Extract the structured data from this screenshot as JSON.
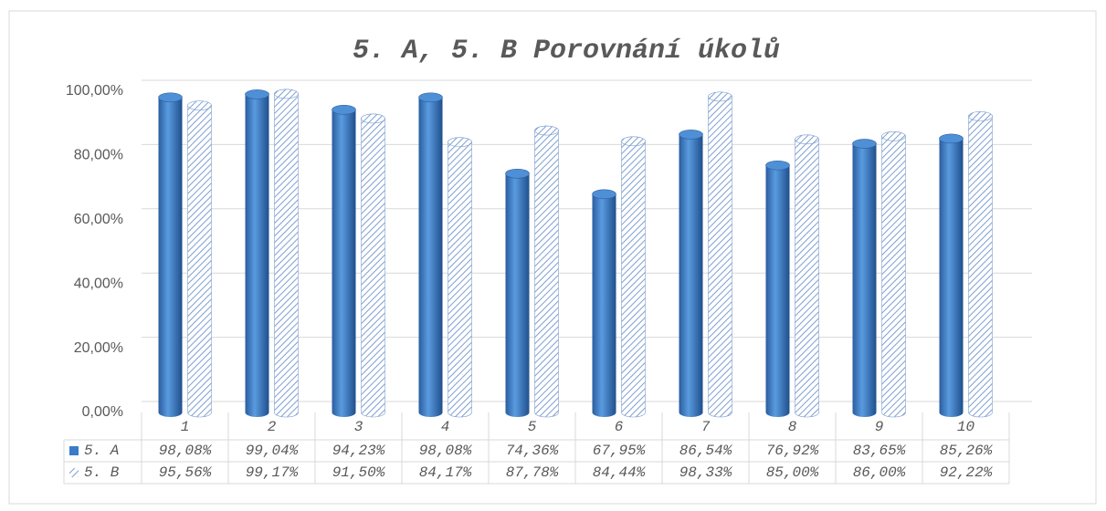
{
  "chart_data": {
    "type": "bar",
    "title": "5. A, 5. B Porovnání úkolů",
    "categories": [
      "1",
      "2",
      "3",
      "4",
      "5",
      "6",
      "7",
      "8",
      "9",
      "10"
    ],
    "series": [
      {
        "name": "5. A",
        "color": "#3a7cc9",
        "values": [
          98.08,
          99.04,
          94.23,
          98.08,
          74.36,
          67.95,
          86.54,
          76.92,
          83.65,
          85.26
        ],
        "value_labels": [
          "98,08%",
          "99,04%",
          "94,23%",
          "98,08%",
          "74,36%",
          "67,95%",
          "86,54%",
          "76,92%",
          "83,65%",
          "85,26%"
        ]
      },
      {
        "name": "5. B",
        "color": "#7f9fd0",
        "values": [
          95.56,
          99.17,
          91.5,
          84.17,
          87.78,
          84.44,
          98.33,
          85.0,
          86.0,
          92.22
        ],
        "value_labels": [
          "95,56%",
          "99,17%",
          "91,50%",
          "84,17%",
          "87,78%",
          "84,44%",
          "98,33%",
          "85,00%",
          "86,00%",
          "92,22%"
        ]
      }
    ],
    "ylim": [
      0,
      100
    ],
    "yticks": [
      {
        "value": 0,
        "label": "0,00%"
      },
      {
        "value": 20,
        "label": "20,00%"
      },
      {
        "value": 40,
        "label": "40,00%"
      },
      {
        "value": 60,
        "label": "60,00%"
      },
      {
        "value": 80,
        "label": "80,00%"
      },
      {
        "value": 100,
        "label": "100,00%"
      }
    ],
    "grid": true
  }
}
